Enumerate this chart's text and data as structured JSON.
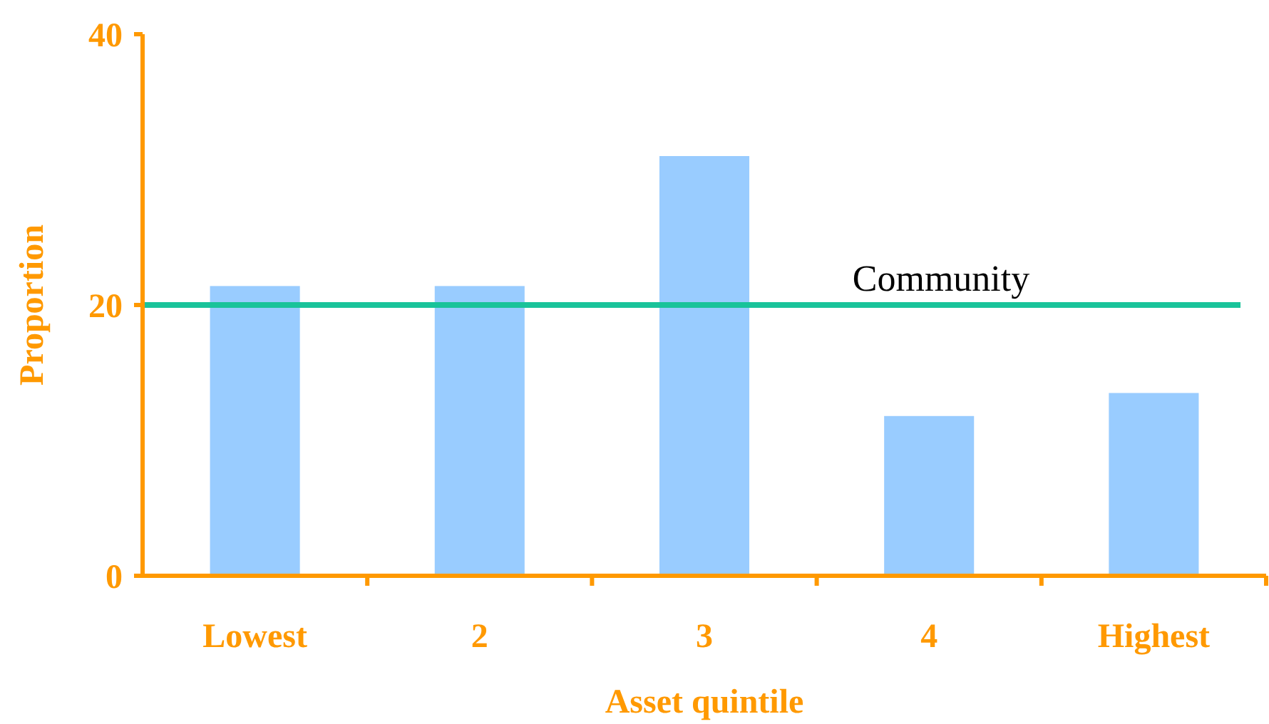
{
  "chart_data": {
    "type": "bar",
    "xlabel": "Asset quintile",
    "ylabel": "Proportion",
    "categories": [
      "Lowest",
      "2",
      "3",
      "4",
      "Highest"
    ],
    "values": [
      21.4,
      21.4,
      31,
      11.8,
      13.5
    ],
    "color": "#99ccff",
    "ylim": [
      0,
      40
    ],
    "yticks": [
      0,
      20,
      40
    ],
    "grid": false,
    "ref_lines": [
      {
        "axis": "y",
        "value": 20,
        "label": "Community",
        "color": "#19c39a"
      }
    ]
  }
}
